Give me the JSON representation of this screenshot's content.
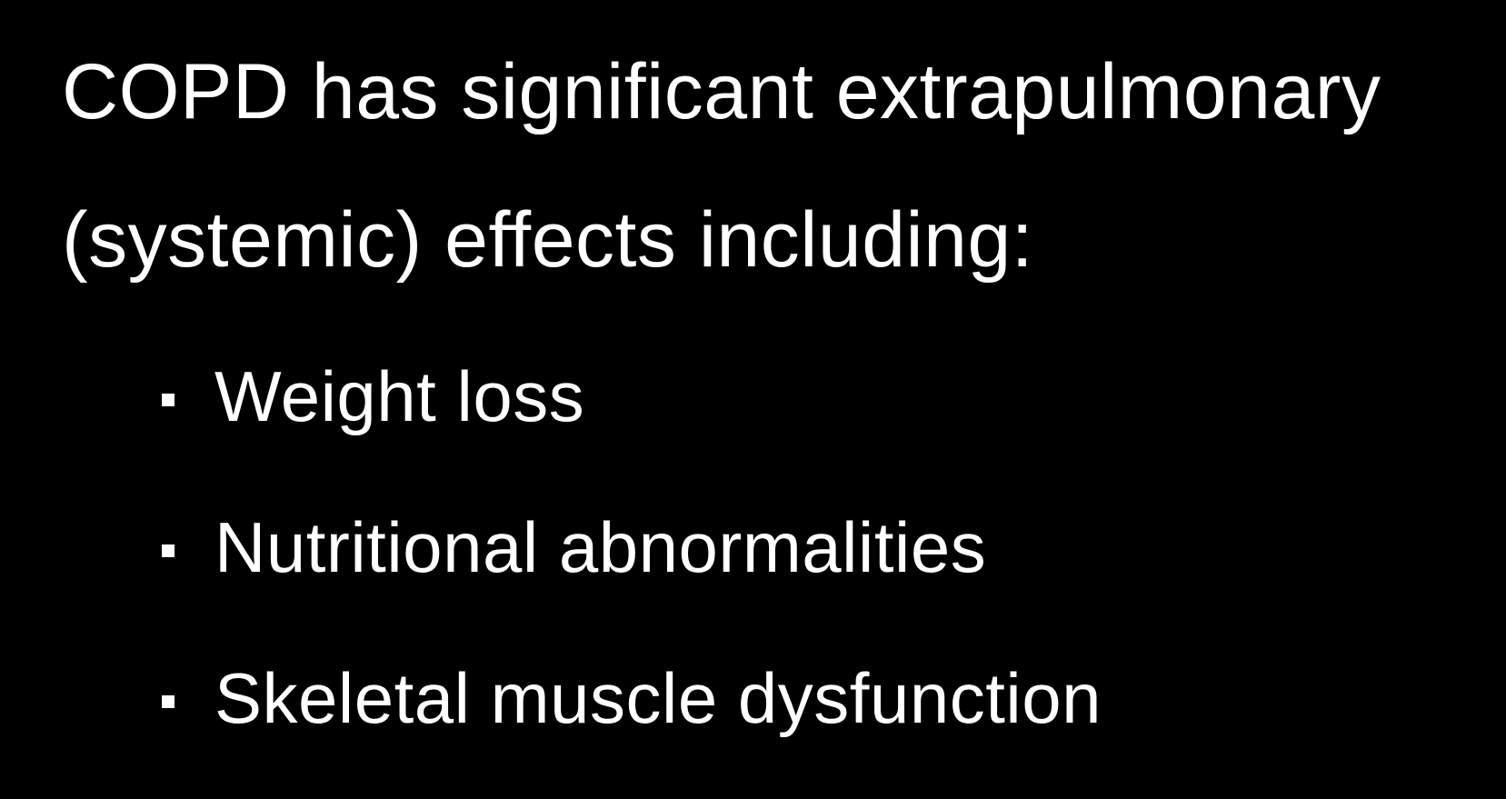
{
  "slide": {
    "background_color": "#000000",
    "text_color": "#ffffff",
    "heading": "COPD has significant extrapulmonary (systemic) effects including:",
    "heading_fontsize": 86,
    "bullet_fontsize": 78,
    "bullet_marker_color": "#ffffff",
    "bullet_marker_size": 14,
    "bullets": [
      {
        "text": "Weight loss"
      },
      {
        "text": "Nutritional abnormalities"
      },
      {
        "text": "Skeletal muscle dysfunction"
      }
    ]
  }
}
